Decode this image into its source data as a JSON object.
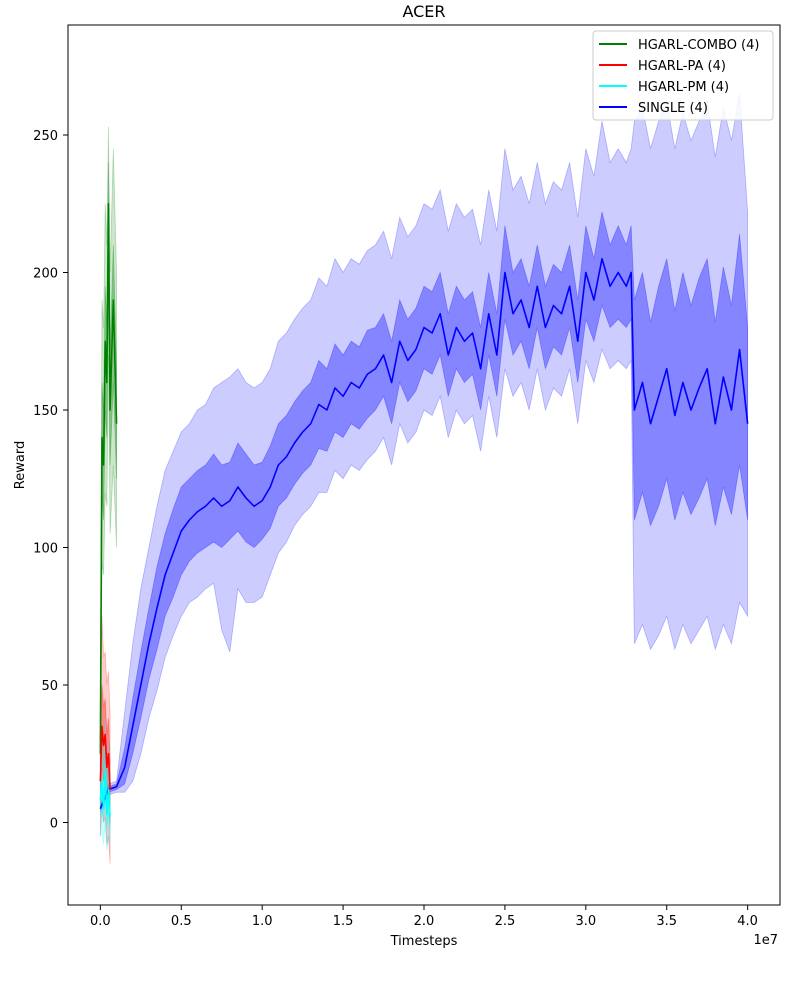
{
  "chart_data": {
    "type": "line",
    "title": "ACER",
    "xlabel": "Timesteps",
    "ylabel": "Reward",
    "x_offset_label": "1e7",
    "xlim": [
      -0.2,
      4.2
    ],
    "ylim": [
      -30,
      290
    ],
    "x_ticks": [
      0.0,
      0.5,
      1.0,
      1.5,
      2.0,
      2.5,
      3.0,
      3.5,
      4.0
    ],
    "x_tick_labels": [
      "0.0",
      "0.5",
      "1.0",
      "1.5",
      "2.0",
      "2.5",
      "3.0",
      "3.5",
      "4.0"
    ],
    "y_ticks": [
      0,
      50,
      100,
      150,
      200,
      250
    ],
    "y_tick_labels": [
      "0",
      "50",
      "100",
      "150",
      "200",
      "250"
    ],
    "grid": false,
    "legend_position": "top-right",
    "series": [
      {
        "name": "HGARL-COMBO (4)",
        "color": "#008000",
        "x": [
          0.0,
          0.01,
          0.02,
          0.03,
          0.04,
          0.05,
          0.06,
          0.08,
          0.1
        ],
        "mean": [
          25,
          140,
          130,
          175,
          160,
          225,
          150,
          190,
          145
        ],
        "inner_low": [
          20,
          120,
          110,
          150,
          140,
          195,
          130,
          160,
          125
        ],
        "inner_high": [
          32,
          160,
          150,
          195,
          180,
          240,
          170,
          210,
          165
        ],
        "outer_low": [
          15,
          95,
          90,
          120,
          115,
          170,
          105,
          130,
          100
        ],
        "outer_high": [
          40,
          190,
          180,
          225,
          210,
          253,
          200,
          245,
          200
        ]
      },
      {
        "name": "HGARL-PA (4)",
        "color": "#ff0000",
        "x": [
          0.0,
          0.01,
          0.02,
          0.03,
          0.04,
          0.05,
          0.06
        ],
        "mean": [
          15,
          35,
          28,
          32,
          20,
          25,
          12
        ],
        "inner_low": [
          5,
          20,
          15,
          18,
          8,
          10,
          0
        ],
        "inner_high": [
          25,
          50,
          42,
          45,
          32,
          38,
          22
        ],
        "outer_low": [
          -5,
          5,
          0,
          2,
          -8,
          -5,
          -15
        ],
        "outer_high": [
          40,
          75,
          60,
          62,
          50,
          55,
          40
        ]
      },
      {
        "name": "HGARL-PM (4)",
        "color": "#00ffff",
        "x": [
          0.0,
          0.01,
          0.02,
          0.03,
          0.04,
          0.05,
          0.06
        ],
        "mean": [
          8,
          15,
          5,
          18,
          3,
          12,
          2
        ],
        "inner_low": [
          2,
          5,
          0,
          8,
          -2,
          3,
          -3
        ],
        "inner_high": [
          14,
          25,
          12,
          28,
          10,
          20,
          8
        ],
        "outer_low": [
          -5,
          -3,
          -8,
          0,
          -10,
          -5,
          -8
        ],
        "outer_high": [
          22,
          35,
          20,
          38,
          18,
          30,
          15
        ]
      },
      {
        "name": "SINGLE (4)",
        "color": "#0000ff",
        "x": [
          0.0,
          0.05,
          0.1,
          0.15,
          0.2,
          0.25,
          0.3,
          0.35,
          0.4,
          0.45,
          0.5,
          0.55,
          0.6,
          0.65,
          0.7,
          0.75,
          0.8,
          0.85,
          0.9,
          0.95,
          1.0,
          1.05,
          1.1,
          1.15,
          1.2,
          1.25,
          1.3,
          1.35,
          1.4,
          1.45,
          1.5,
          1.55,
          1.6,
          1.65,
          1.7,
          1.75,
          1.8,
          1.85,
          1.9,
          1.95,
          2.0,
          2.05,
          2.1,
          2.15,
          2.2,
          2.25,
          2.3,
          2.35,
          2.4,
          2.45,
          2.5,
          2.55,
          2.6,
          2.65,
          2.7,
          2.75,
          2.8,
          2.85,
          2.9,
          2.95,
          3.0,
          3.05,
          3.1,
          3.15,
          3.2,
          3.25,
          3.28,
          3.3,
          3.35,
          3.4,
          3.45,
          3.5,
          3.55,
          3.6,
          3.65,
          3.7,
          3.75,
          3.8,
          3.85,
          3.9,
          3.95,
          4.0
        ],
        "mean": [
          5,
          12,
          13,
          20,
          35,
          50,
          65,
          78,
          90,
          98,
          106,
          110,
          113,
          115,
          118,
          115,
          117,
          122,
          118,
          115,
          117,
          122,
          130,
          133,
          138,
          142,
          145,
          152,
          150,
          158,
          155,
          160,
          158,
          163,
          165,
          170,
          160,
          175,
          168,
          172,
          180,
          178,
          185,
          170,
          180,
          175,
          178,
          165,
          185,
          170,
          200,
          185,
          190,
          180,
          195,
          180,
          188,
          185,
          195,
          175,
          200,
          190,
          205,
          195,
          200,
          195,
          200,
          150,
          160,
          145,
          155,
          165,
          148,
          160,
          150,
          158,
          165,
          145,
          162,
          150,
          172,
          145
        ],
        "inner_low": [
          5,
          11,
          12,
          14,
          25,
          38,
          52,
          63,
          75,
          82,
          90,
          95,
          98,
          100,
          102,
          100,
          103,
          106,
          102,
          100,
          103,
          107,
          115,
          118,
          123,
          127,
          130,
          136,
          135,
          142,
          140,
          145,
          143,
          147,
          150,
          155,
          145,
          160,
          153,
          157,
          165,
          163,
          170,
          155,
          165,
          160,
          163,
          150,
          170,
          155,
          183,
          170,
          175,
          165,
          180,
          165,
          173,
          170,
          180,
          160,
          183,
          175,
          188,
          180,
          183,
          180,
          183,
          110,
          120,
          108,
          115,
          125,
          110,
          120,
          112,
          118,
          125,
          108,
          122,
          112,
          130,
          110
        ],
        "inner_high": [
          6,
          13,
          14,
          27,
          45,
          62,
          78,
          93,
          105,
          114,
          122,
          125,
          128,
          130,
          134,
          130,
          131,
          138,
          134,
          130,
          131,
          137,
          145,
          148,
          153,
          157,
          160,
          168,
          165,
          174,
          170,
          175,
          173,
          179,
          180,
          185,
          175,
          190,
          183,
          187,
          195,
          193,
          200,
          185,
          195,
          190,
          193,
          180,
          200,
          185,
          217,
          200,
          205,
          195,
          210,
          195,
          203,
          200,
          210,
          190,
          217,
          205,
          222,
          210,
          217,
          210,
          217,
          190,
          200,
          182,
          195,
          205,
          186,
          200,
          188,
          198,
          205,
          182,
          202,
          188,
          214,
          180
        ],
        "outer_low": [
          4,
          10,
          11,
          11,
          15,
          25,
          38,
          48,
          60,
          68,
          75,
          80,
          82,
          85,
          87,
          70,
          62,
          85,
          80,
          80,
          82,
          90,
          98,
          102,
          108,
          112,
          115,
          120,
          120,
          128,
          125,
          130,
          128,
          132,
          135,
          140,
          130,
          145,
          138,
          142,
          150,
          148,
          155,
          140,
          150,
          145,
          148,
          135,
          155,
          140,
          165,
          155,
          160,
          150,
          165,
          150,
          158,
          155,
          165,
          145,
          168,
          160,
          172,
          165,
          168,
          165,
          168,
          65,
          72,
          63,
          68,
          75,
          63,
          72,
          65,
          70,
          75,
          63,
          72,
          65,
          80,
          75
        ],
        "outer_high": [
          7,
          14,
          15,
          40,
          65,
          85,
          100,
          115,
          128,
          135,
          142,
          145,
          150,
          152,
          158,
          160,
          162,
          165,
          160,
          158,
          160,
          165,
          175,
          178,
          183,
          187,
          190,
          198,
          195,
          205,
          200,
          205,
          203,
          208,
          210,
          215,
          205,
          220,
          213,
          217,
          225,
          223,
          230,
          215,
          225,
          220,
          223,
          210,
          230,
          215,
          245,
          230,
          235,
          225,
          240,
          225,
          233,
          230,
          240,
          220,
          245,
          235,
          255,
          240,
          245,
          240,
          245,
          255,
          260,
          245,
          255,
          262,
          245,
          258,
          248,
          255,
          262,
          242,
          260,
          248,
          265,
          222
        ]
      }
    ]
  }
}
